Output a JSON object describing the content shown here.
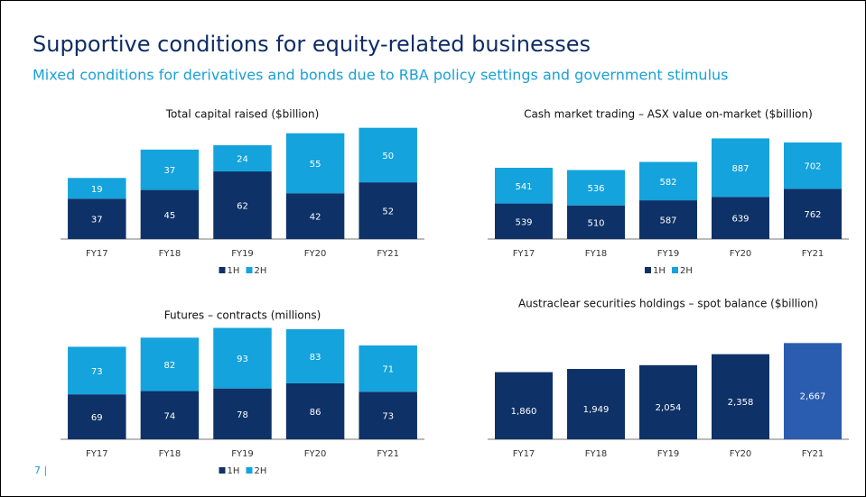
{
  "title": "Supportive conditions for equity-related businesses",
  "subtitle": "Mixed conditions for derivatives and bonds due to RBA policy settings and government stimulus",
  "page_number": "7 |",
  "chart_data": [
    {
      "type": "bar",
      "stacked": true,
      "title": "Total capital raised ($billion)",
      "categories": [
        "FY17",
        "FY18",
        "FY19",
        "FY20",
        "FY21"
      ],
      "series": [
        {
          "name": "1H",
          "color": "#0e3167",
          "values": [
            37,
            45,
            62,
            42,
            52
          ]
        },
        {
          "name": "2H",
          "color": "#14a3dc",
          "values": [
            19,
            37,
            24,
            55,
            50
          ]
        }
      ],
      "ylim": [
        0,
        110
      ]
    },
    {
      "type": "bar",
      "stacked": true,
      "title": "Cash market trading – ASX value on-market ($billion)",
      "categories": [
        "FY17",
        "FY18",
        "FY19",
        "FY20",
        "FY21"
      ],
      "series": [
        {
          "name": "1H",
          "color": "#0e3167",
          "values": [
            539,
            510,
            587,
            639,
            762
          ]
        },
        {
          "name": "2H",
          "color": "#14a3dc",
          "values": [
            541,
            536,
            582,
            887,
            702
          ]
        }
      ],
      "ylim": [
        0,
        1600
      ]
    },
    {
      "type": "bar",
      "stacked": true,
      "title": "Futures – contracts (millions)",
      "categories": [
        "FY17",
        "FY18",
        "FY19",
        "FY20",
        "FY21"
      ],
      "series": [
        {
          "name": "1H",
          "color": "#0e3167",
          "values": [
            69,
            74,
            78,
            86,
            73
          ]
        },
        {
          "name": "2H",
          "color": "#14a3dc",
          "values": [
            73,
            82,
            93,
            83,
            71
          ]
        }
      ],
      "ylim": [
        0,
        180
      ]
    },
    {
      "type": "bar",
      "title": "Austraclear securities holdings – spot balance ($billion)",
      "categories": [
        "FY17",
        "FY18",
        "FY19",
        "FY20",
        "FY21"
      ],
      "values": [
        1860,
        1949,
        2054,
        2358,
        2667
      ],
      "value_labels": [
        "1,860",
        "1,949",
        "2,054",
        "2,358",
        "2,667"
      ],
      "colors": [
        "#0e3167",
        "#0e3167",
        "#0e3167",
        "#0e3167",
        "#2a5db0"
      ],
      "ylim": [
        0,
        2800
      ]
    }
  ]
}
